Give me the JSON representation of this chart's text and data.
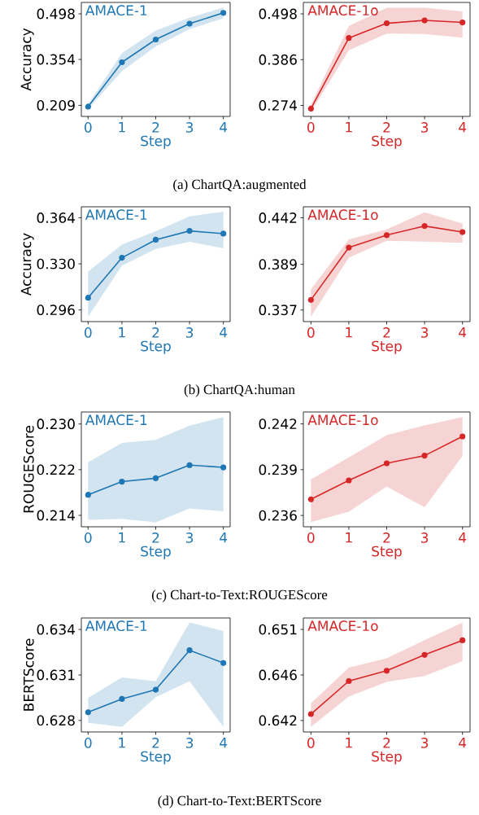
{
  "chart_data": [
    {
      "type": "line",
      "x": [
        0,
        1,
        2,
        3,
        4
      ],
      "xlim": [
        -0.2,
        4.2
      ],
      "xticks": [
        0,
        1,
        2,
        3,
        4
      ],
      "ylim": [
        0.174,
        0.534
      ],
      "yticks": [
        0.209,
        0.354,
        0.498
      ],
      "xlabel": "Step",
      "ylabel": "Accuracy",
      "marker": "circle",
      "line_style": "solid",
      "series": [
        {
          "name": "AMACE-1",
          "color": "#1f77b4",
          "values": [
            0.205,
            0.345,
            0.417,
            0.467,
            0.501
          ],
          "lower": [
            0.198,
            0.317,
            0.395,
            0.45,
            0.484
          ],
          "upper": [
            0.212,
            0.374,
            0.445,
            0.486,
            0.518
          ]
        }
      ],
      "annotations": [
        "(a) ChartQA:augmented"
      ]
    },
    {
      "type": "line",
      "x": [
        0,
        1,
        2,
        3,
        4
      ],
      "xlim": [
        -0.2,
        4.2
      ],
      "xticks": [
        0,
        1,
        2,
        3,
        4
      ],
      "ylim": [
        0.247,
        0.526
      ],
      "yticks": [
        0.274,
        0.386,
        0.498
      ],
      "xlabel": "Step",
      "marker": "circle",
      "line_style": "solid",
      "series": [
        {
          "name": "AMACE-1o",
          "color": "#d62728",
          "values": [
            0.266,
            0.439,
            0.475,
            0.482,
            0.477
          ],
          "lower": [
            0.258,
            0.409,
            0.45,
            0.449,
            0.44
          ],
          "upper": [
            0.276,
            0.468,
            0.513,
            0.513,
            0.504
          ]
        }
      ]
    },
    {
      "type": "line",
      "x": [
        0,
        1,
        2,
        3,
        4
      ],
      "xlim": [
        -0.2,
        4.2
      ],
      "xticks": [
        0,
        1,
        2,
        3,
        4
      ],
      "ylim": [
        0.2874,
        0.3721
      ],
      "yticks": [
        0.296,
        {
          "value": 0.33,
          "label": "0.330"
        },
        0.364
      ],
      "xlabel": "Step",
      "ylabel": "Accuracy",
      "marker": "circle",
      "line_style": "solid",
      "series": [
        {
          "name": "AMACE-1",
          "color": "#1f77b4",
          "values": [
            0.305,
            0.3345,
            0.3478,
            0.3543,
            0.3523
          ],
          "lower": [
            0.291,
            0.3287,
            0.341,
            0.3462,
            0.3415
          ],
          "upper": [
            0.3244,
            0.3442,
            0.3541,
            0.3651,
            0.3685
          ]
        }
      ],
      "annotations": [
        "(b) ChartQA:human"
      ]
    },
    {
      "type": "line",
      "x": [
        0,
        1,
        2,
        3,
        4
      ],
      "xlim": [
        -0.2,
        4.2
      ],
      "xticks": [
        0,
        1,
        2,
        3,
        4
      ],
      "ylim": [
        0.3238,
        0.4545
      ],
      "yticks": [
        0.337,
        0.389,
        0.442
      ],
      "xlabel": "Step",
      "marker": "circle",
      "line_style": "solid",
      "series": [
        {
          "name": "AMACE-1o",
          "color": "#d62728",
          "values": [
            0.3485,
            0.4081,
            0.4222,
            0.4326,
            0.4257
          ],
          "lower": [
            0.3294,
            0.3966,
            0.4159,
            0.4149,
            0.4135
          ],
          "upper": [
            0.3606,
            0.4175,
            0.4287,
            0.4483,
            0.4354
          ]
        }
      ]
    },
    {
      "type": "line",
      "x": [
        0,
        1,
        2,
        3,
        4
      ],
      "xlim": [
        -0.2,
        4.2
      ],
      "xticks": [
        0,
        1,
        2,
        3,
        4
      ],
      "ylim": [
        0.212,
        0.2321
      ],
      "yticks": [
        0.214,
        0.222,
        {
          "value": 0.23,
          "label": "0.230"
        }
      ],
      "xlabel": "Step",
      "ylabel": "ROUGEScore",
      "marker": "circle",
      "line_style": "solid",
      "series": [
        {
          "name": "AMACE-1",
          "color": "#1f77b4",
          "values": [
            0.2176,
            0.2199,
            0.2205,
            0.2228,
            0.2224
          ],
          "lower": [
            0.2132,
            0.2134,
            0.2128,
            0.2152,
            0.2147
          ],
          "upper": [
            0.2233,
            0.2267,
            0.2272,
            0.2297,
            0.2312
          ]
        }
      ],
      "annotations": [
        "(c) Chart-to-Text:ROUGEScore"
      ]
    },
    {
      "type": "line",
      "x": [
        0,
        1,
        2,
        3,
        4
      ],
      "xlim": [
        -0.2,
        4.2
      ],
      "xticks": [
        0,
        1,
        2,
        3,
        4
      ],
      "ylim": [
        0.23526,
        0.24278
      ],
      "yticks": [
        0.236,
        0.239,
        0.242
      ],
      "xlabel": "Step",
      "marker": "circle",
      "line_style": "solid",
      "series": [
        {
          "name": "AMACE-1o",
          "color": "#d62728",
          "values": [
            0.23706,
            0.2383,
            0.23942,
            0.23992,
            0.24118
          ],
          "lower": [
            0.23556,
            0.23624,
            0.2379,
            0.23654,
            0.2399
          ],
          "upper": [
            0.23836,
            0.2398,
            0.24126,
            0.2419,
            0.24244
          ]
        }
      ]
    },
    {
      "type": "line",
      "x": [
        0,
        1,
        2,
        3,
        4
      ],
      "xlim": [
        -0.2,
        4.2
      ],
      "xticks": [
        0,
        1,
        2,
        3,
        4
      ],
      "ylim": [
        0.62724,
        0.63476
      ],
      "yticks": [
        0.628,
        0.631,
        0.634
      ],
      "xlabel": "Step",
      "ylabel": "BERTScore",
      "marker": "circle",
      "line_style": "solid",
      "series": [
        {
          "name": "AMACE-1",
          "color": "#1f77b4",
          "values": [
            0.62854,
            0.62942,
            0.63003,
            0.63263,
            0.63179
          ],
          "lower": [
            0.62784,
            0.62758,
            0.62954,
            0.63058,
            0.62758
          ],
          "upper": [
            0.62948,
            0.63084,
            0.63058,
            0.63446,
            0.6339
          ]
        }
      ],
      "annotations": [
        "(d) Chart-to-Text:BERTScore"
      ]
    },
    {
      "type": "line",
      "x": [
        0,
        1,
        2,
        3,
        4
      ],
      "xlim": [
        -0.2,
        4.2
      ],
      "xticks": [
        0,
        1,
        2,
        3,
        4
      ],
      "ylim": [
        0.64089,
        0.65191
      ],
      "yticks": [
        0.642,
        {
          "value": 0.6464,
          "label": "0.646"
        },
        {
          "value": 0.6508,
          "label": "0.651"
        }
      ],
      "xlabel": "Step",
      "marker": "circle",
      "line_style": "solid",
      "series": [
        {
          "name": "AMACE-1o",
          "color": "#d62728",
          "values": [
            0.64262,
            0.64581,
            0.64681,
            0.64834,
            0.64975
          ],
          "lower": [
            0.64138,
            0.64432,
            0.64573,
            0.64631,
            0.64773
          ],
          "upper": [
            0.64367,
            0.6471,
            0.64801,
            0.64977,
            0.65146
          ]
        }
      ]
    }
  ]
}
